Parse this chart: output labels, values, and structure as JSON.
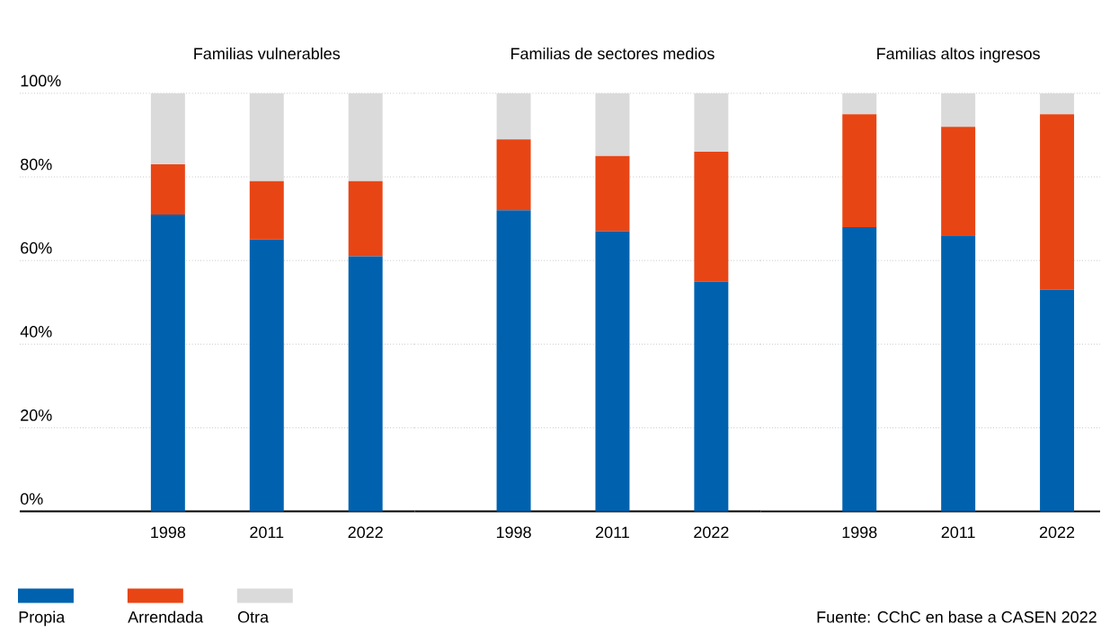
{
  "chart_data": [
    {
      "type": "bar",
      "stacked": true,
      "title": "Familias vulnerables",
      "categories": [
        "1998",
        "2011",
        "2022"
      ],
      "ylim": [
        0,
        100
      ],
      "yticks": [
        {
          "value": 0,
          "label": "0%"
        },
        {
          "value": 20,
          "label": "20%"
        },
        {
          "value": 40,
          "label": "40%"
        },
        {
          "value": 60,
          "label": "60%"
        },
        {
          "value": 80,
          "label": "80%"
        },
        {
          "value": 100,
          "label": "100%"
        }
      ],
      "grid": "y",
      "legend": "bottom",
      "series": [
        {
          "name": "Propia",
          "color": "#0062af",
          "values": [
            71,
            65,
            61
          ]
        },
        {
          "name": "Arrendada",
          "color": "#e84515",
          "values": [
            12,
            14,
            18
          ]
        },
        {
          "name": "Otra",
          "color": "#dadada",
          "values": [
            17,
            21,
            21
          ]
        }
      ]
    },
    {
      "type": "bar",
      "stacked": true,
      "title": "Familias de sectores medios",
      "categories": [
        "1998",
        "2011",
        "2022"
      ],
      "ylim": [
        0,
        100
      ],
      "yticks": [
        0,
        20,
        40,
        60,
        80,
        100
      ],
      "grid": "y",
      "tick_labels": "x",
      "series": [
        {
          "color": "#0062af",
          "values": [
            72,
            67,
            55
          ]
        },
        {
          "color": "#e84515",
          "values": [
            17,
            18,
            31
          ]
        },
        {
          "color": "#dadada",
          "values": [
            11,
            15,
            14
          ]
        }
      ]
    },
    {
      "type": "bar",
      "stacked": true,
      "title": "Familias altos ingresos",
      "categories": [
        "1998",
        "2011",
        "2022"
      ],
      "ylim": [
        0,
        100
      ],
      "yticks": [
        0,
        20,
        40,
        60,
        80,
        100
      ],
      "grid": "y",
      "tick_labels": "x",
      "annotations": [
        "Fuente: CChC en base a CASEN 2022"
      ],
      "series": [
        {
          "color": "#0062af",
          "values": [
            68,
            66,
            53
          ]
        },
        {
          "color": "#e84515",
          "values": [
            27,
            26,
            42
          ]
        },
        {
          "color": "#dadada",
          "values": [
            5,
            8,
            5
          ]
        }
      ]
    }
  ]
}
